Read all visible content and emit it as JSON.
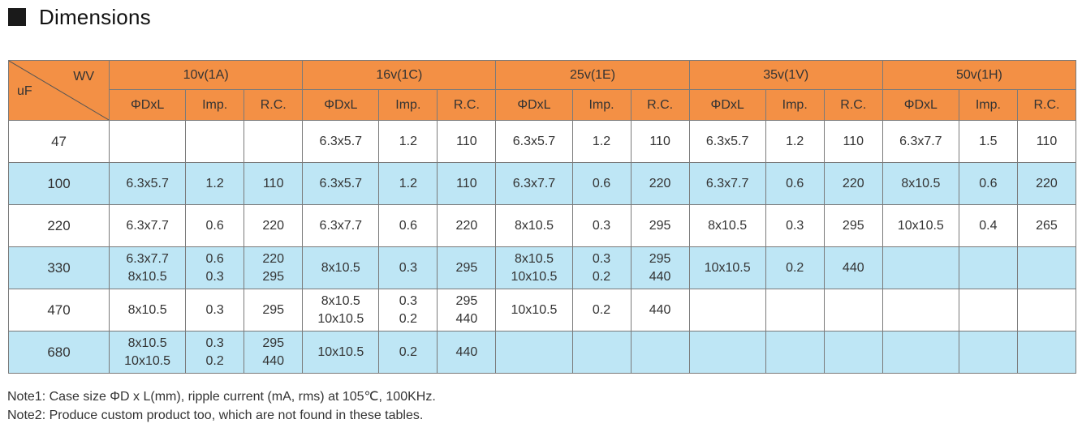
{
  "heading": "Dimensions",
  "corner": {
    "top": "WV",
    "bottom": "uF"
  },
  "voltages": [
    "10v(1A)",
    "16v(1C)",
    "25v(1E)",
    "35v(1V)",
    "50v(1H)"
  ],
  "subheaders": [
    "ΦDxL",
    "Imp.",
    "R.C."
  ],
  "rows": [
    {
      "cap": "47",
      "cells": [
        [
          "",
          "",
          ""
        ],
        [
          "6.3x5.7",
          "1.2",
          "110"
        ],
        [
          "6.3x5.7",
          "1.2",
          "110"
        ],
        [
          "6.3x5.7",
          "1.2",
          "110"
        ],
        [
          "6.3x7.7",
          "1.5",
          "110"
        ]
      ]
    },
    {
      "cap": "100",
      "cells": [
        [
          "6.3x5.7",
          "1.2",
          "110"
        ],
        [
          "6.3x5.7",
          "1.2",
          "110"
        ],
        [
          "6.3x7.7",
          "0.6",
          "220"
        ],
        [
          "6.3x7.7",
          "0.6",
          "220"
        ],
        [
          "8x10.5",
          "0.6",
          "220"
        ]
      ]
    },
    {
      "cap": "220",
      "cells": [
        [
          "6.3x7.7",
          "0.6",
          "220"
        ],
        [
          "6.3x7.7",
          "0.6",
          "220"
        ],
        [
          "8x10.5",
          "0.3",
          "295"
        ],
        [
          "8x10.5",
          "0.3",
          "295"
        ],
        [
          "10x10.5",
          "0.4",
          "265"
        ]
      ]
    },
    {
      "cap": "330",
      "cells": [
        [
          "6.3x7.7\n8x10.5",
          "0.6\n0.3",
          "220\n295"
        ],
        [
          "8x10.5",
          "0.3",
          "295"
        ],
        [
          "8x10.5\n10x10.5",
          "0.3\n0.2",
          "295\n440"
        ],
        [
          "10x10.5",
          "0.2",
          "440"
        ],
        [
          "",
          "",
          ""
        ]
      ]
    },
    {
      "cap": "470",
      "cells": [
        [
          "8x10.5",
          "0.3",
          "295"
        ],
        [
          "8x10.5\n10x10.5",
          "0.3\n0.2",
          "295\n440"
        ],
        [
          "10x10.5",
          "0.2",
          "440"
        ],
        [
          "",
          "",
          ""
        ],
        [
          "",
          "",
          ""
        ]
      ]
    },
    {
      "cap": "680",
      "cells": [
        [
          "8x10.5\n10x10.5",
          "0.3\n0.2",
          "295\n440"
        ],
        [
          "10x10.5",
          "0.2",
          "440"
        ],
        [
          "",
          "",
          ""
        ],
        [
          "",
          "",
          ""
        ],
        [
          "",
          "",
          ""
        ]
      ]
    }
  ],
  "notes": [
    "Note1: Case size ΦD x L(mm), ripple current (mA, rms) at 105℃, 100KHz.",
    "Note2: Produce custom product too, which are not found in these tables."
  ],
  "colors": {
    "header": "#f39045",
    "alt_row": "#bee6f5",
    "border": "#7a7a7a"
  }
}
